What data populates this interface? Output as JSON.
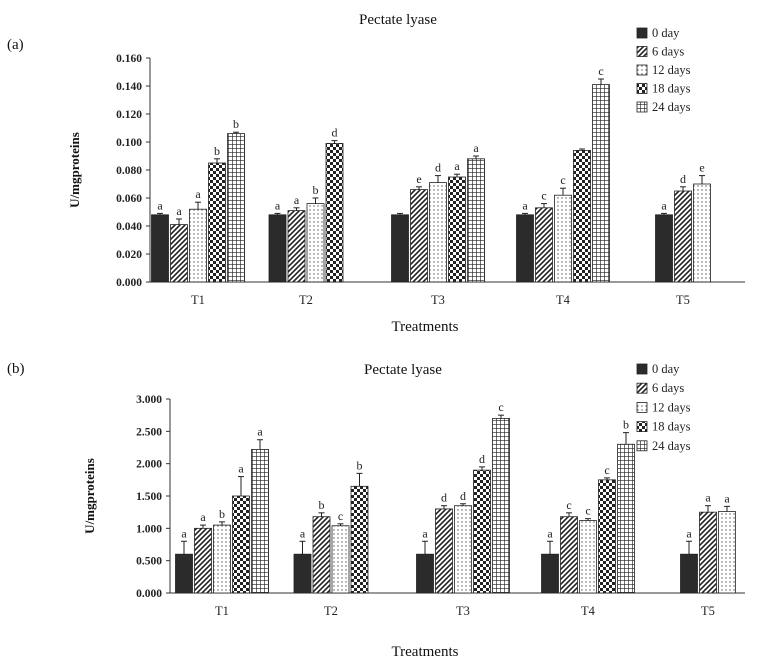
{
  "colors": {
    "bar_dark": "#2b2b2b",
    "bar_fill_light": "#ffffff",
    "axis": "#333333",
    "text": "#111111"
  },
  "series_patterns": [
    "solid",
    "diagonal",
    "dots",
    "checker",
    "grid"
  ],
  "chart_data": [
    {
      "panel_label": "(a)",
      "type": "bar",
      "title": "Pectate lyase",
      "xlabel": "Treatments",
      "ylabel": "U/mgproteins",
      "ylim": [
        0,
        0.16
      ],
      "yticks": [
        "0.000",
        "0.020",
        "0.040",
        "0.060",
        "0.080",
        "0.100",
        "0.120",
        "0.140",
        "0.160"
      ],
      "grid": false,
      "legend_position": "top-right",
      "categories": [
        "T1",
        "T2",
        "T3",
        "T4",
        "T5"
      ],
      "series": [
        {
          "name": "0 day",
          "values": [
            0.048,
            0.048,
            0.048,
            0.048,
            0.048
          ],
          "errors": [
            0.001,
            0.001,
            0.001,
            0.001,
            0.001
          ],
          "labels": [
            "a",
            "a",
            "",
            "a",
            "a"
          ]
        },
        {
          "name": "6 days",
          "values": [
            0.041,
            0.051,
            0.066,
            0.053,
            0.065
          ],
          "errors": [
            0.004,
            0.002,
            0.002,
            0.003,
            0.003
          ],
          "labels": [
            "a",
            "a",
            "e",
            "c",
            "d"
          ]
        },
        {
          "name": "12 days",
          "values": [
            0.052,
            0.056,
            0.071,
            0.062,
            0.07
          ],
          "errors": [
            0.005,
            0.004,
            0.005,
            0.005,
            0.006
          ],
          "labels": [
            "a",
            "b",
            "d",
            "c",
            "e"
          ]
        },
        {
          "name": "18 days",
          "values": [
            0.085,
            0.099,
            0.075,
            0.094,
            null
          ],
          "errors": [
            0.003,
            0.002,
            0.002,
            0.001,
            null
          ],
          "labels": [
            "b",
            "d",
            "a",
            "",
            ""
          ]
        },
        {
          "name": "24 days",
          "values": [
            0.106,
            null,
            0.088,
            0.141,
            null
          ],
          "errors": [
            0.001,
            null,
            0.002,
            0.004,
            null
          ],
          "labels": [
            "b",
            "",
            "a",
            "c",
            ""
          ]
        }
      ]
    },
    {
      "panel_label": "(b)",
      "type": "bar",
      "title": "Pectate lyase",
      "xlabel": "Treatments",
      "ylabel": "U/mgproteins",
      "ylim": [
        0,
        3.0
      ],
      "yticks": [
        "0.000",
        "0.500",
        "1.000",
        "1.500",
        "2.000",
        "2.500",
        "3.000"
      ],
      "grid": false,
      "legend_position": "top-right",
      "categories": [
        "T1",
        "T2",
        "T3",
        "T4",
        "T5"
      ],
      "series": [
        {
          "name": "0 day",
          "values": [
            0.6,
            0.6,
            0.6,
            0.6,
            0.6
          ],
          "errors": [
            0.2,
            0.2,
            0.2,
            0.2,
            0.2
          ],
          "labels": [
            "a",
            "a",
            "a",
            "a",
            "a"
          ]
        },
        {
          "name": "6 days",
          "values": [
            1.0,
            1.18,
            1.3,
            1.18,
            1.25
          ],
          "errors": [
            0.05,
            0.06,
            0.05,
            0.06,
            0.1
          ],
          "labels": [
            "a",
            "b",
            "d",
            "c",
            "a"
          ]
        },
        {
          "name": "12 days",
          "values": [
            1.05,
            1.04,
            1.35,
            1.12,
            1.26
          ],
          "errors": [
            0.05,
            0.03,
            0.03,
            0.03,
            0.08
          ],
          "labels": [
            "b",
            "c",
            "d",
            "c",
            "a"
          ]
        },
        {
          "name": "18 days",
          "values": [
            1.5,
            1.65,
            1.9,
            1.75,
            null
          ],
          "errors": [
            0.3,
            0.2,
            0.05,
            0.03,
            null
          ],
          "labels": [
            "a",
            "b",
            "d",
            "c",
            ""
          ]
        },
        {
          "name": "24 days",
          "values": [
            2.22,
            null,
            2.7,
            2.3,
            null
          ],
          "errors": [
            0.15,
            null,
            0.05,
            0.18,
            null
          ],
          "labels": [
            "a",
            "",
            "c",
            "b",
            ""
          ]
        }
      ]
    }
  ]
}
